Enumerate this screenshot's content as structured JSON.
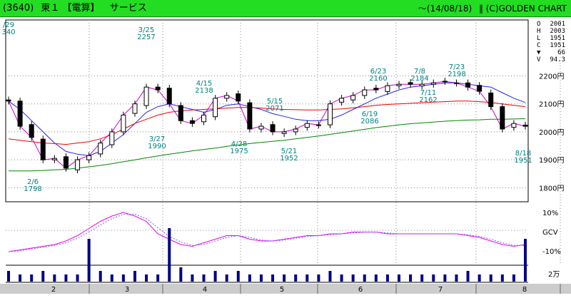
{
  "header": {
    "code": "(3640)",
    "market": "東１",
    "name": "【電算】",
    "sector": "サービス",
    "date": "〜(14/08/18)",
    "brand": "‖ (C)GOLDEN CHART"
  },
  "ohlc": {
    "O": {
      "label": "O",
      "value": "2001"
    },
    "H": {
      "label": "H",
      "value": "2003"
    },
    "L": {
      "label": "L",
      "value": "1951"
    },
    "C": {
      "label": "C",
      "value": "1951"
    },
    "change": "66",
    "V": {
      "label": "V",
      "value": "94.3"
    }
  },
  "colors": {
    "header": "#22dd22",
    "candle": "#000000",
    "ma_short": "#cc00cc",
    "ma_mid": "#2222ee",
    "ma_long_red": "#ee0000",
    "ma_long_green": "#008800",
    "volume": "#000088",
    "oscillator": "#ee00ee",
    "oscillator_signal": "#6666ff",
    "grid": "#888888",
    "annotation": "#008080"
  },
  "chart_data": {
    "type": "candlestick",
    "x_tick_labels": [
      "2",
      "3",
      "4",
      "5",
      "6",
      "7",
      "8"
    ],
    "y_tick_labels": [
      "2200円",
      "2100円",
      "2000円",
      "1900円",
      "1800円"
    ],
    "y_ticks": [
      2200,
      2100,
      2000,
      1900,
      1800
    ],
    "ylim": [
      1750,
      2400
    ],
    "oscillator_labels": [
      "10%",
      "GCV",
      "-10%"
    ],
    "volume_label": "2万",
    "annotations": [
      {
        "date": "/29",
        "price": "340"
      },
      {
        "date": "2/6",
        "price": "1798"
      },
      {
        "date": "3/25",
        "price": "2257"
      },
      {
        "date": "3/27",
        "price": "1990"
      },
      {
        "date": "4/15",
        "price": "2138"
      },
      {
        "date": "4/28",
        "price": "1975"
      },
      {
        "date": "5/15",
        "price": "2071"
      },
      {
        "date": "5/21",
        "price": "1952"
      },
      {
        "date": "6/23",
        "price": "2160"
      },
      {
        "date": "6/19",
        "price": "2086"
      },
      {
        "date": "7/8",
        "price": "2184"
      },
      {
        "date": "7/11",
        "price": "2162"
      },
      {
        "date": "7/23",
        "price": "2198"
      },
      {
        "date": "8/18",
        "price": "1951"
      }
    ],
    "series": [
      {
        "values": [
          2110,
          2020,
          1980,
          1900,
          1905,
          1870,
          1900,
          1915,
          1960,
          2000,
          2060,
          2100,
          2160,
          2150,
          2100,
          2040,
          2030,
          2060,
          2120,
          2130,
          2110,
          2010,
          2020,
          2000,
          2000,
          2010,
          2030,
          2025,
          2100,
          2120,
          2130,
          2150,
          2150,
          2165,
          2170,
          2170,
          2170,
          2175,
          2180,
          2175,
          2160,
          2145,
          2090,
          2010,
          2030,
          2020
        ]
      },
      {
        "values": [
          2110,
          2080,
          2040,
          2000,
          1960,
          1930,
          1920,
          1915,
          1930,
          1960,
          1990,
          2030,
          2070,
          2090,
          2100,
          2090,
          2080,
          2070,
          2080,
          2095,
          2100,
          2090,
          2080,
          2065,
          2055,
          2045,
          2040,
          2040,
          2045,
          2060,
          2080,
          2100,
          2120,
          2135,
          2150,
          2160,
          2165,
          2170,
          2175,
          2175,
          2170,
          2165,
          2160,
          2140,
          2120,
          2105
        ]
      },
      {
        "values": [
          1975,
          1970,
          1965,
          1960,
          1958,
          1955,
          1960,
          1965,
          1975,
          1990,
          2010,
          2030,
          2045,
          2060,
          2070,
          2075,
          2078,
          2080,
          2082,
          2085,
          2087,
          2087,
          2085,
          2082,
          2080,
          2079,
          2078,
          2078,
          2080,
          2082,
          2086,
          2090,
          2095,
          2098,
          2100,
          2102,
          2104,
          2106,
          2108,
          2110,
          2110,
          2108,
          2105,
          2100,
          2095,
          2090
        ]
      },
      {
        "values": [
          1860,
          1860,
          1860,
          1862,
          1864,
          1866,
          1870,
          1875,
          1880,
          1886,
          1893,
          1900,
          1907,
          1914,
          1920,
          1926,
          1932,
          1937,
          1942,
          1948,
          1953,
          1958,
          1962,
          1966,
          1970,
          1975,
          1980,
          1985,
          1991,
          1997,
          2003,
          2009,
          2015,
          2020,
          2025,
          2029,
          2032,
          2035,
          2038,
          2040,
          2042,
          2043,
          2045,
          2045,
          2046,
          2047
        ]
      },
      {
        "values": [
          -12,
          -11,
          -10,
          -9,
          -8,
          -6,
          -3,
          1,
          5,
          8,
          10,
          8,
          5,
          -2,
          -5,
          -8,
          -9,
          -7,
          -5,
          -3,
          -3,
          -5,
          -6,
          -6,
          -5,
          -4,
          -3,
          -3,
          -2,
          -2,
          -1,
          -1,
          -1,
          -2,
          -2,
          -2,
          -2,
          -2,
          -2,
          -2,
          -3,
          -4,
          -6,
          -8,
          -9,
          -8
        ]
      },
      {
        "values": [
          3,
          2,
          2,
          3,
          2,
          2,
          2,
          12,
          3,
          2,
          2,
          3,
          2,
          2,
          15,
          4,
          2,
          2,
          3,
          2,
          3,
          2,
          2,
          2,
          2,
          2,
          2,
          2,
          3,
          2,
          2,
          2,
          2,
          2,
          2,
          2,
          2,
          2,
          2,
          2,
          3,
          2,
          2,
          2,
          2,
          12
        ]
      }
    ]
  }
}
